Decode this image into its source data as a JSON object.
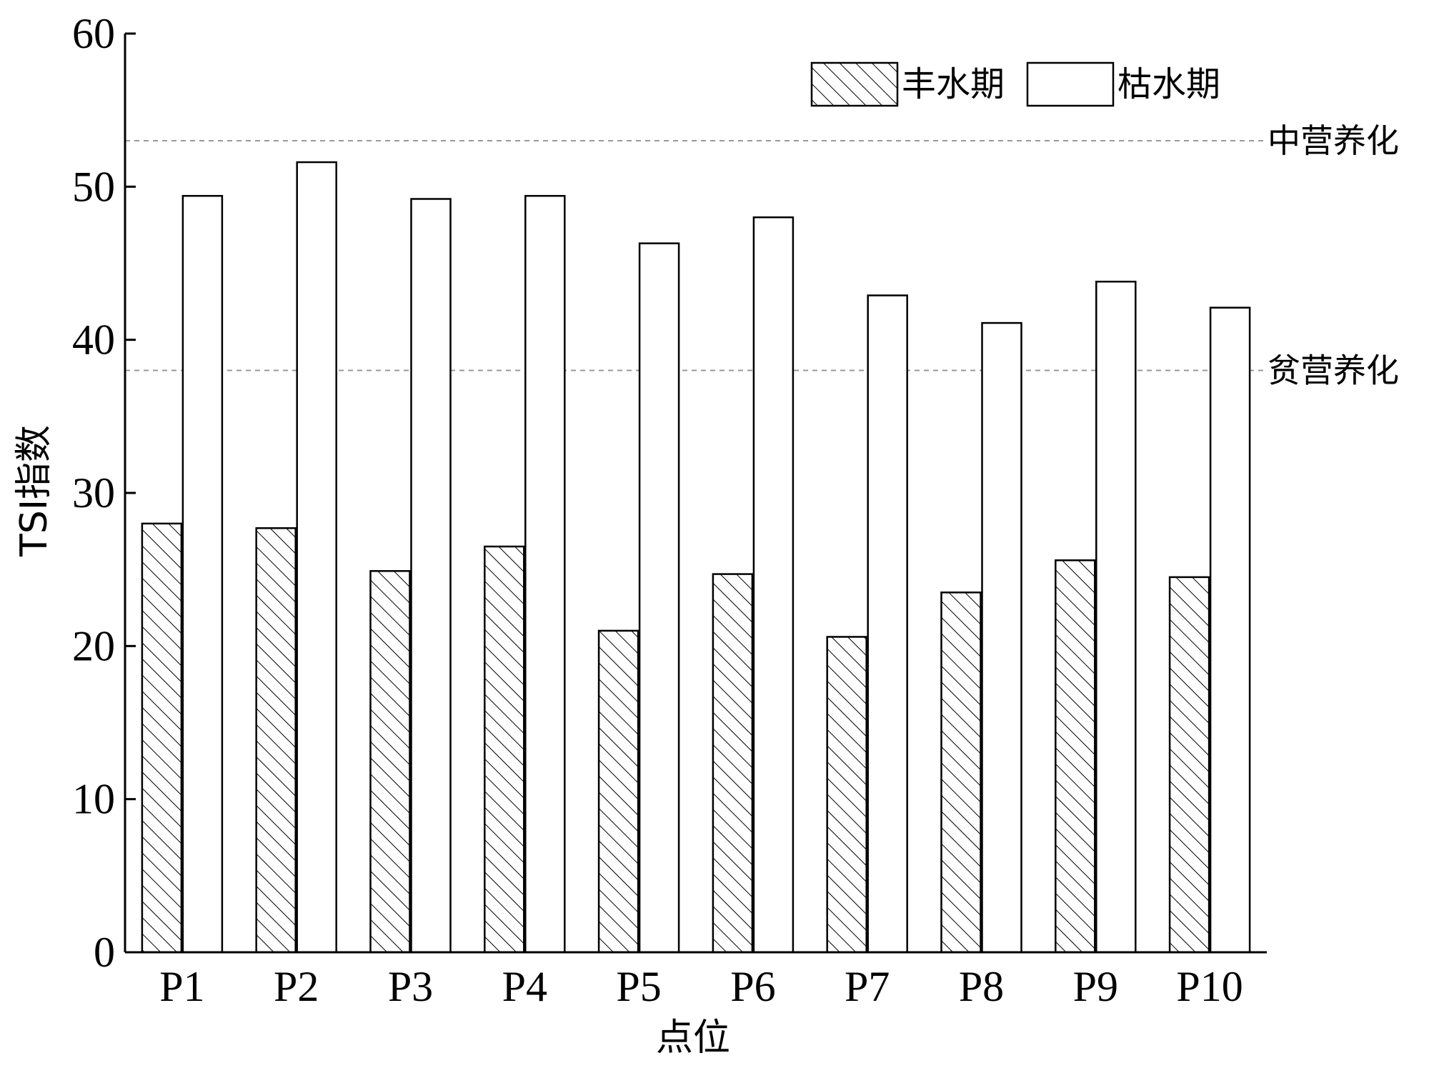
{
  "chart_data": {
    "type": "bar",
    "xlabel": "点位",
    "ylabel": "TSI指数",
    "ylim": [
      0,
      60
    ],
    "yticks": [
      0,
      10,
      20,
      30,
      40,
      50,
      60
    ],
    "categories": [
      "P1",
      "P2",
      "P3",
      "P4",
      "P5",
      "P6",
      "P7",
      "P8",
      "P9",
      "P10"
    ],
    "series": [
      {
        "name": "丰水期",
        "pattern": "hatch",
        "values": [
          28.0,
          27.7,
          24.9,
          26.5,
          21.0,
          24.7,
          20.6,
          23.5,
          25.6,
          24.5
        ]
      },
      {
        "name": "枯水期",
        "pattern": "white",
        "values": [
          49.4,
          51.6,
          49.2,
          49.4,
          46.3,
          48.0,
          42.9,
          41.1,
          43.8,
          42.1
        ]
      }
    ],
    "reference_lines": [
      {
        "value": 53,
        "label": "中营养化"
      },
      {
        "value": 38,
        "label": "贫营养化"
      }
    ],
    "legend": "top-right",
    "grid": false
  }
}
